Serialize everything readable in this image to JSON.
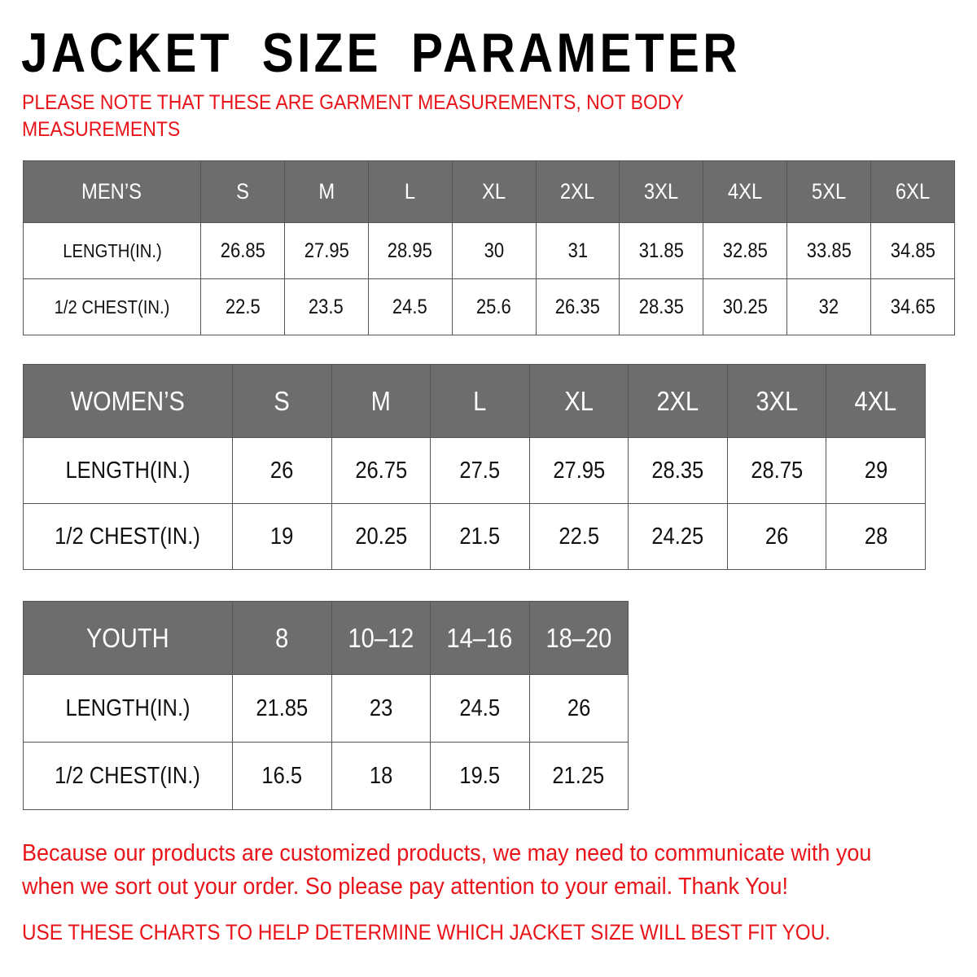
{
  "title": "JACKET SIZE PARAMETER",
  "note": "PLEASE NOTE THAT THESE ARE GARMENT MEASUREMENTS, NOT BODY MEASUREMENTS",
  "colors": {
    "header_bg": "#6d6d6d",
    "accent_red": "#e8141a"
  },
  "tables": {
    "men": {
      "header": [
        "MEN’S",
        "S",
        "M",
        "L",
        "XL",
        "2XL",
        "3XL",
        "4XL",
        "5XL",
        "6XL"
      ],
      "rows": [
        [
          "LENGTH(IN.)",
          "26.85",
          "27.95",
          "28.95",
          "30",
          "31",
          "31.85",
          "32.85",
          "33.85",
          "34.85"
        ],
        [
          "1/2 CHEST(IN.)",
          "22.5",
          "23.5",
          "24.5",
          "25.6",
          "26.35",
          "28.35",
          "30.25",
          "32",
          "34.65"
        ]
      ]
    },
    "women": {
      "header": [
        "WOMEN’S",
        "S",
        "M",
        "L",
        "XL",
        "2XL",
        "3XL",
        "4XL"
      ],
      "rows": [
        [
          "LENGTH(IN.)",
          "26",
          "26.75",
          "27.5",
          "27.95",
          "28.35",
          "28.75",
          "29"
        ],
        [
          "1/2 CHEST(IN.)",
          "19",
          "20.25",
          "21.5",
          "22.5",
          "24.25",
          "26",
          "28"
        ]
      ]
    },
    "youth": {
      "header": [
        "YOUTH",
        "8",
        "10–12",
        "14–16",
        "18–20"
      ],
      "rows": [
        [
          "LENGTH(IN.)",
          "21.85",
          "23",
          "24.5",
          "26"
        ],
        [
          "1/2 CHEST(IN.)",
          "16.5",
          "18",
          "19.5",
          "21.25"
        ]
      ]
    }
  },
  "footer": {
    "message": "Because our products are customized products, we may need to communicate with you when we sort out your order. So please pay attention to your email. Thank You!",
    "advice": "USE THESE CHARTS TO HELP DETERMINE WHICH JACKET SIZE WILL BEST FIT YOU."
  }
}
